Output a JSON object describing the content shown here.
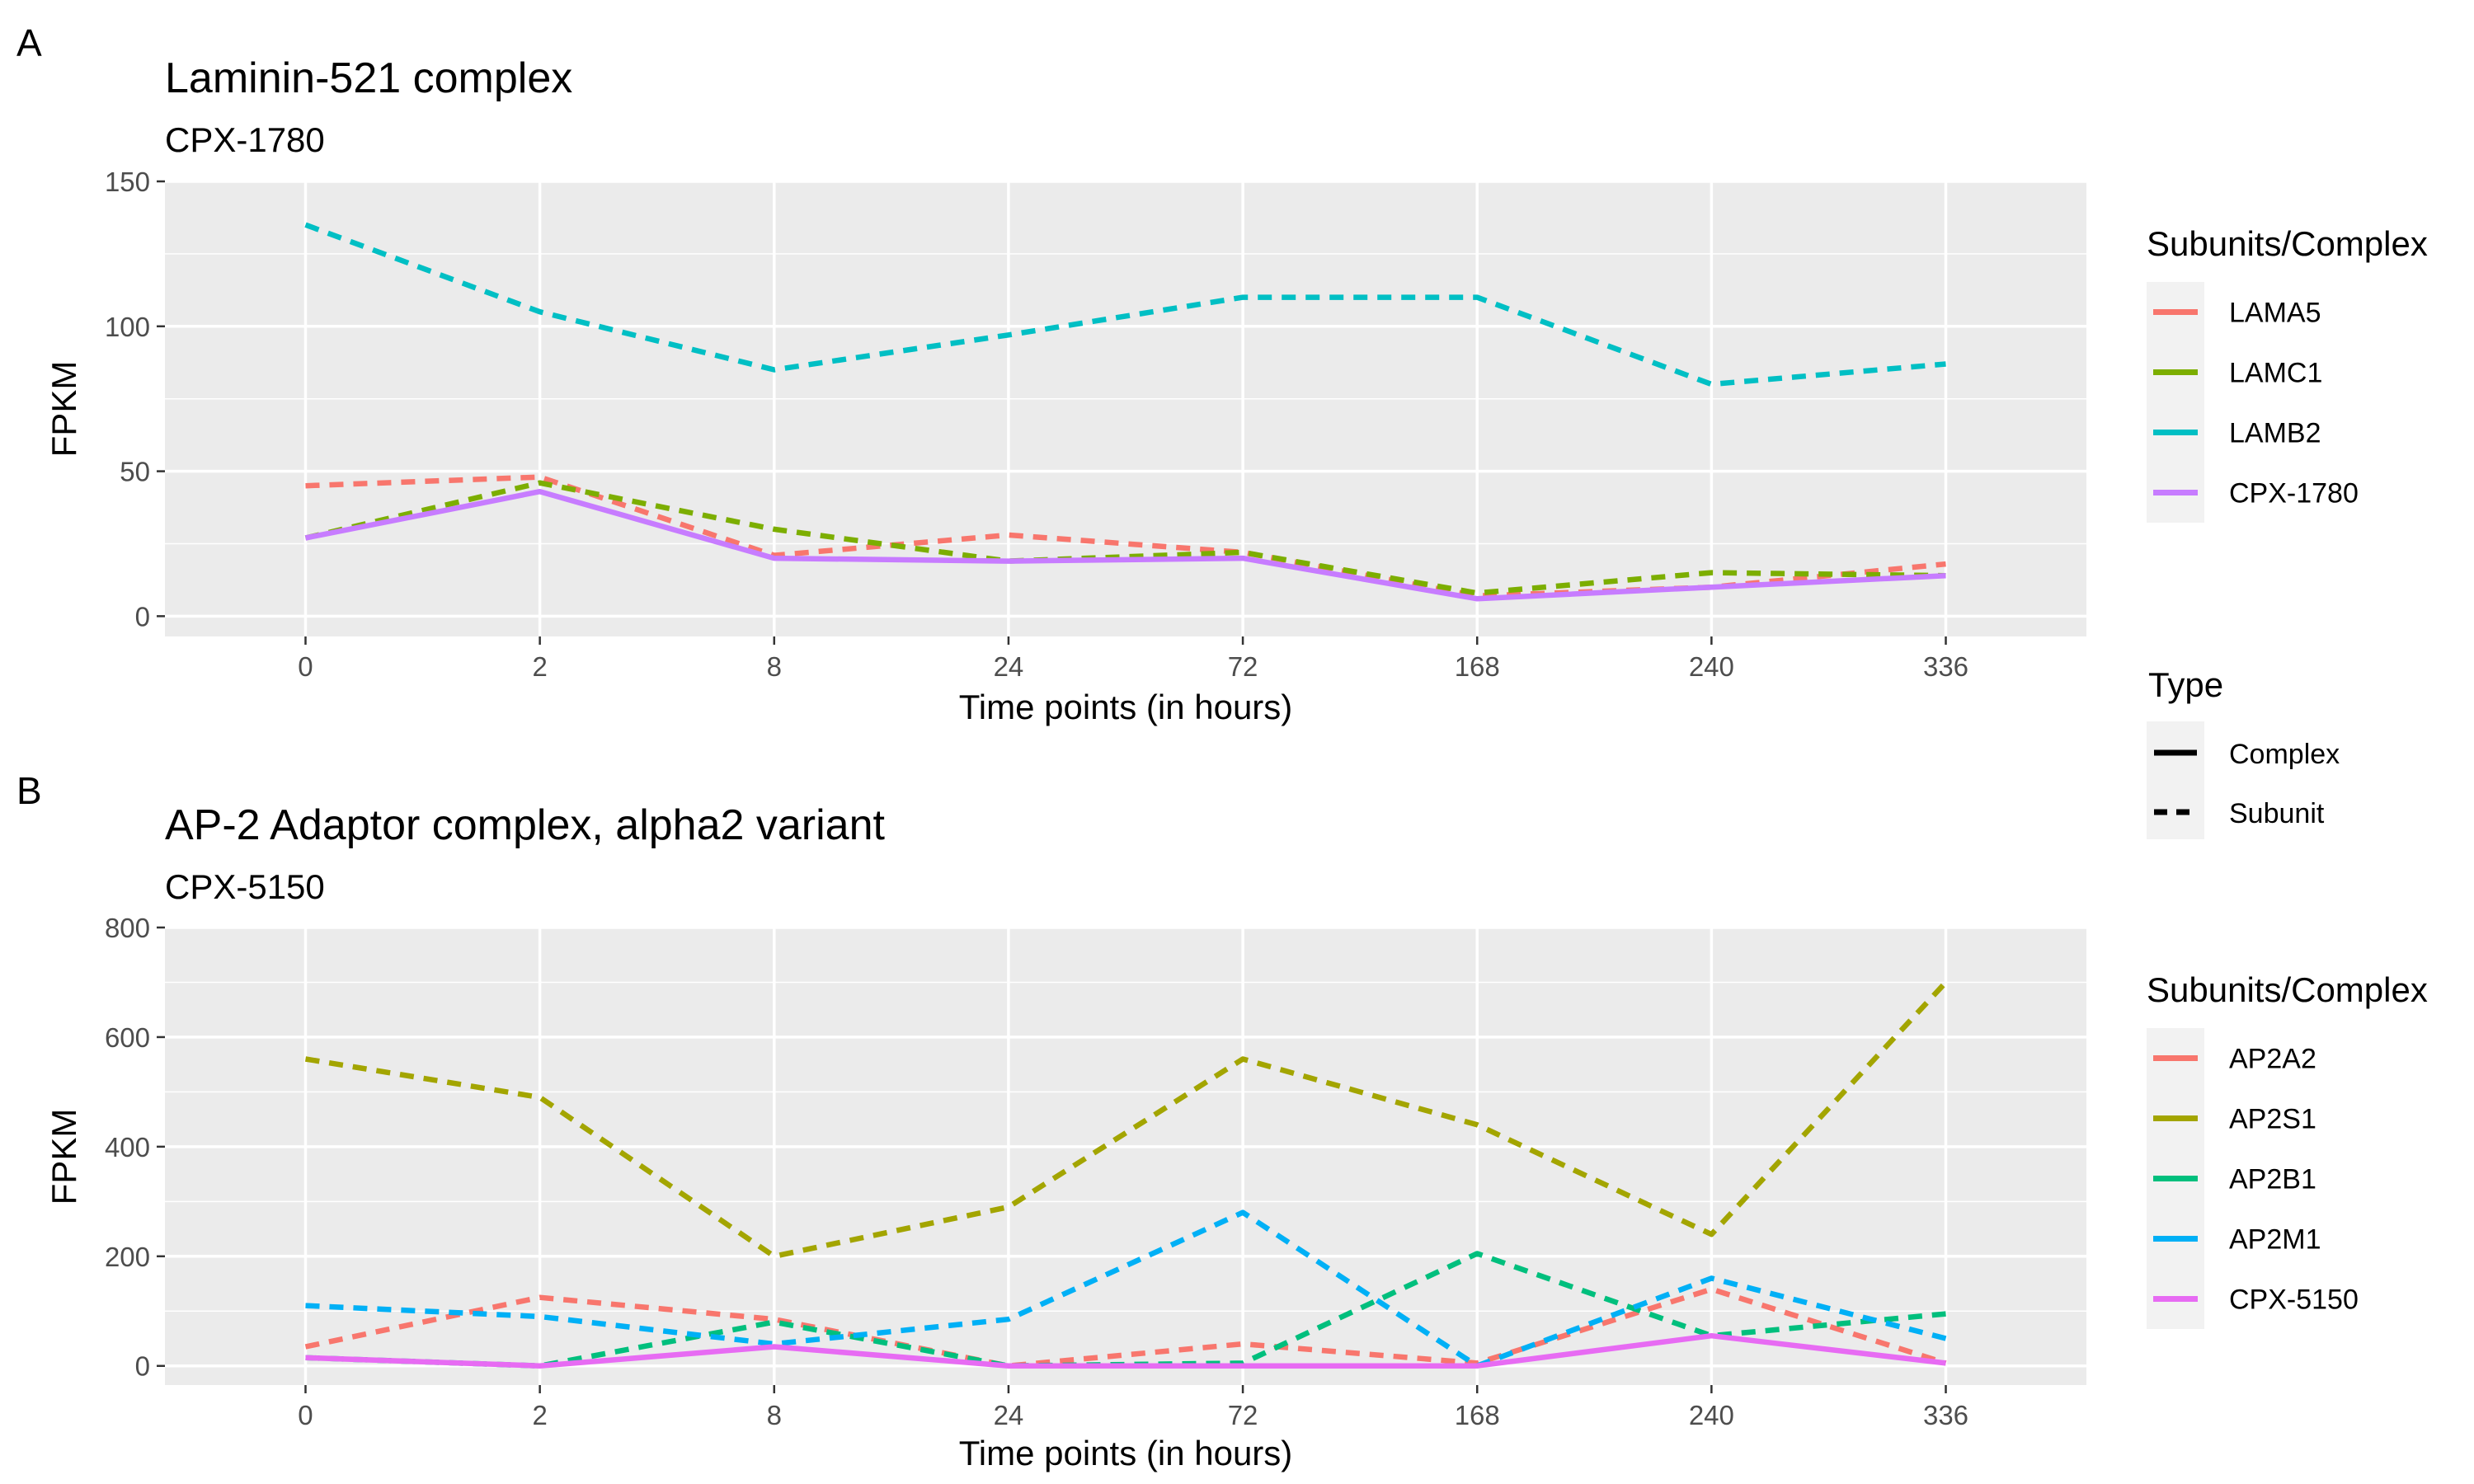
{
  "chart_data": [
    {
      "panel_label": "A",
      "type": "line",
      "title": "Laminin-521 complex",
      "subtitle": "CPX-1780",
      "xlabel": "Time points (in hours)",
      "ylabel": "FPKM",
      "categories": [
        "0",
        "2",
        "8",
        "24",
        "72",
        "168",
        "240",
        "336"
      ],
      "ylim": [
        -7,
        150
      ],
      "yticks": [
        0,
        50,
        100,
        150
      ],
      "grid": true,
      "legend_title": "Subunits/Complex",
      "series": [
        {
          "name": "LAMA5",
          "type": "Subunit",
          "color": "#F8766D",
          "values": [
            45,
            48,
            21,
            28,
            22,
            7,
            10,
            18
          ]
        },
        {
          "name": "LAMC1",
          "type": "Subunit",
          "color": "#7CAE00",
          "values": [
            27,
            46,
            30,
            19,
            22,
            8,
            15,
            14
          ]
        },
        {
          "name": "LAMB2",
          "type": "Subunit",
          "color": "#00BFC4",
          "values": [
            135,
            105,
            85,
            97,
            110,
            110,
            80,
            87
          ]
        },
        {
          "name": "CPX-1780",
          "type": "Complex",
          "color": "#C77CFF",
          "values": [
            27,
            43,
            20,
            19,
            20,
            6,
            10,
            14
          ]
        }
      ]
    },
    {
      "panel_label": "B",
      "type": "line",
      "title": "AP-2 Adaptor complex, alpha2 variant",
      "subtitle": "CPX-5150",
      "xlabel": "Time points (in hours)",
      "ylabel": "FPKM",
      "categories": [
        "0",
        "2",
        "8",
        "24",
        "72",
        "168",
        "240",
        "336"
      ],
      "ylim": [
        -35,
        800
      ],
      "yticks": [
        0,
        200,
        400,
        600,
        800
      ],
      "grid": true,
      "legend_title": "Subunits/Complex",
      "series": [
        {
          "name": "AP2A2",
          "type": "Subunit",
          "color": "#F8766D",
          "values": [
            35,
            125,
            85,
            0,
            40,
            5,
            140,
            5
          ]
        },
        {
          "name": "AP2S1",
          "type": "Subunit",
          "color": "#A3A500",
          "values": [
            560,
            490,
            200,
            290,
            560,
            440,
            240,
            700
          ]
        },
        {
          "name": "AP2B1",
          "type": "Subunit",
          "color": "#00BF7D",
          "values": [
            15,
            0,
            80,
            0,
            5,
            205,
            55,
            95
          ]
        },
        {
          "name": "AP2M1",
          "type": "Subunit",
          "color": "#00B0F6",
          "values": [
            110,
            90,
            40,
            85,
            280,
            0,
            160,
            50
          ]
        },
        {
          "name": "CPX-5150",
          "type": "Complex",
          "color": "#E76BF3",
          "values": [
            15,
            0,
            35,
            0,
            0,
            0,
            55,
            5
          ]
        }
      ]
    }
  ],
  "type_legend": {
    "title": "Type",
    "items": [
      {
        "label": "Complex",
        "dash": "solid"
      },
      {
        "label": "Subunit",
        "dash": "dashed"
      }
    ]
  },
  "colors": {
    "panel_background": "#EBEBEB",
    "grid": "#FFFFFF",
    "text": "#000000",
    "tick_text": "#4D4D4D"
  }
}
